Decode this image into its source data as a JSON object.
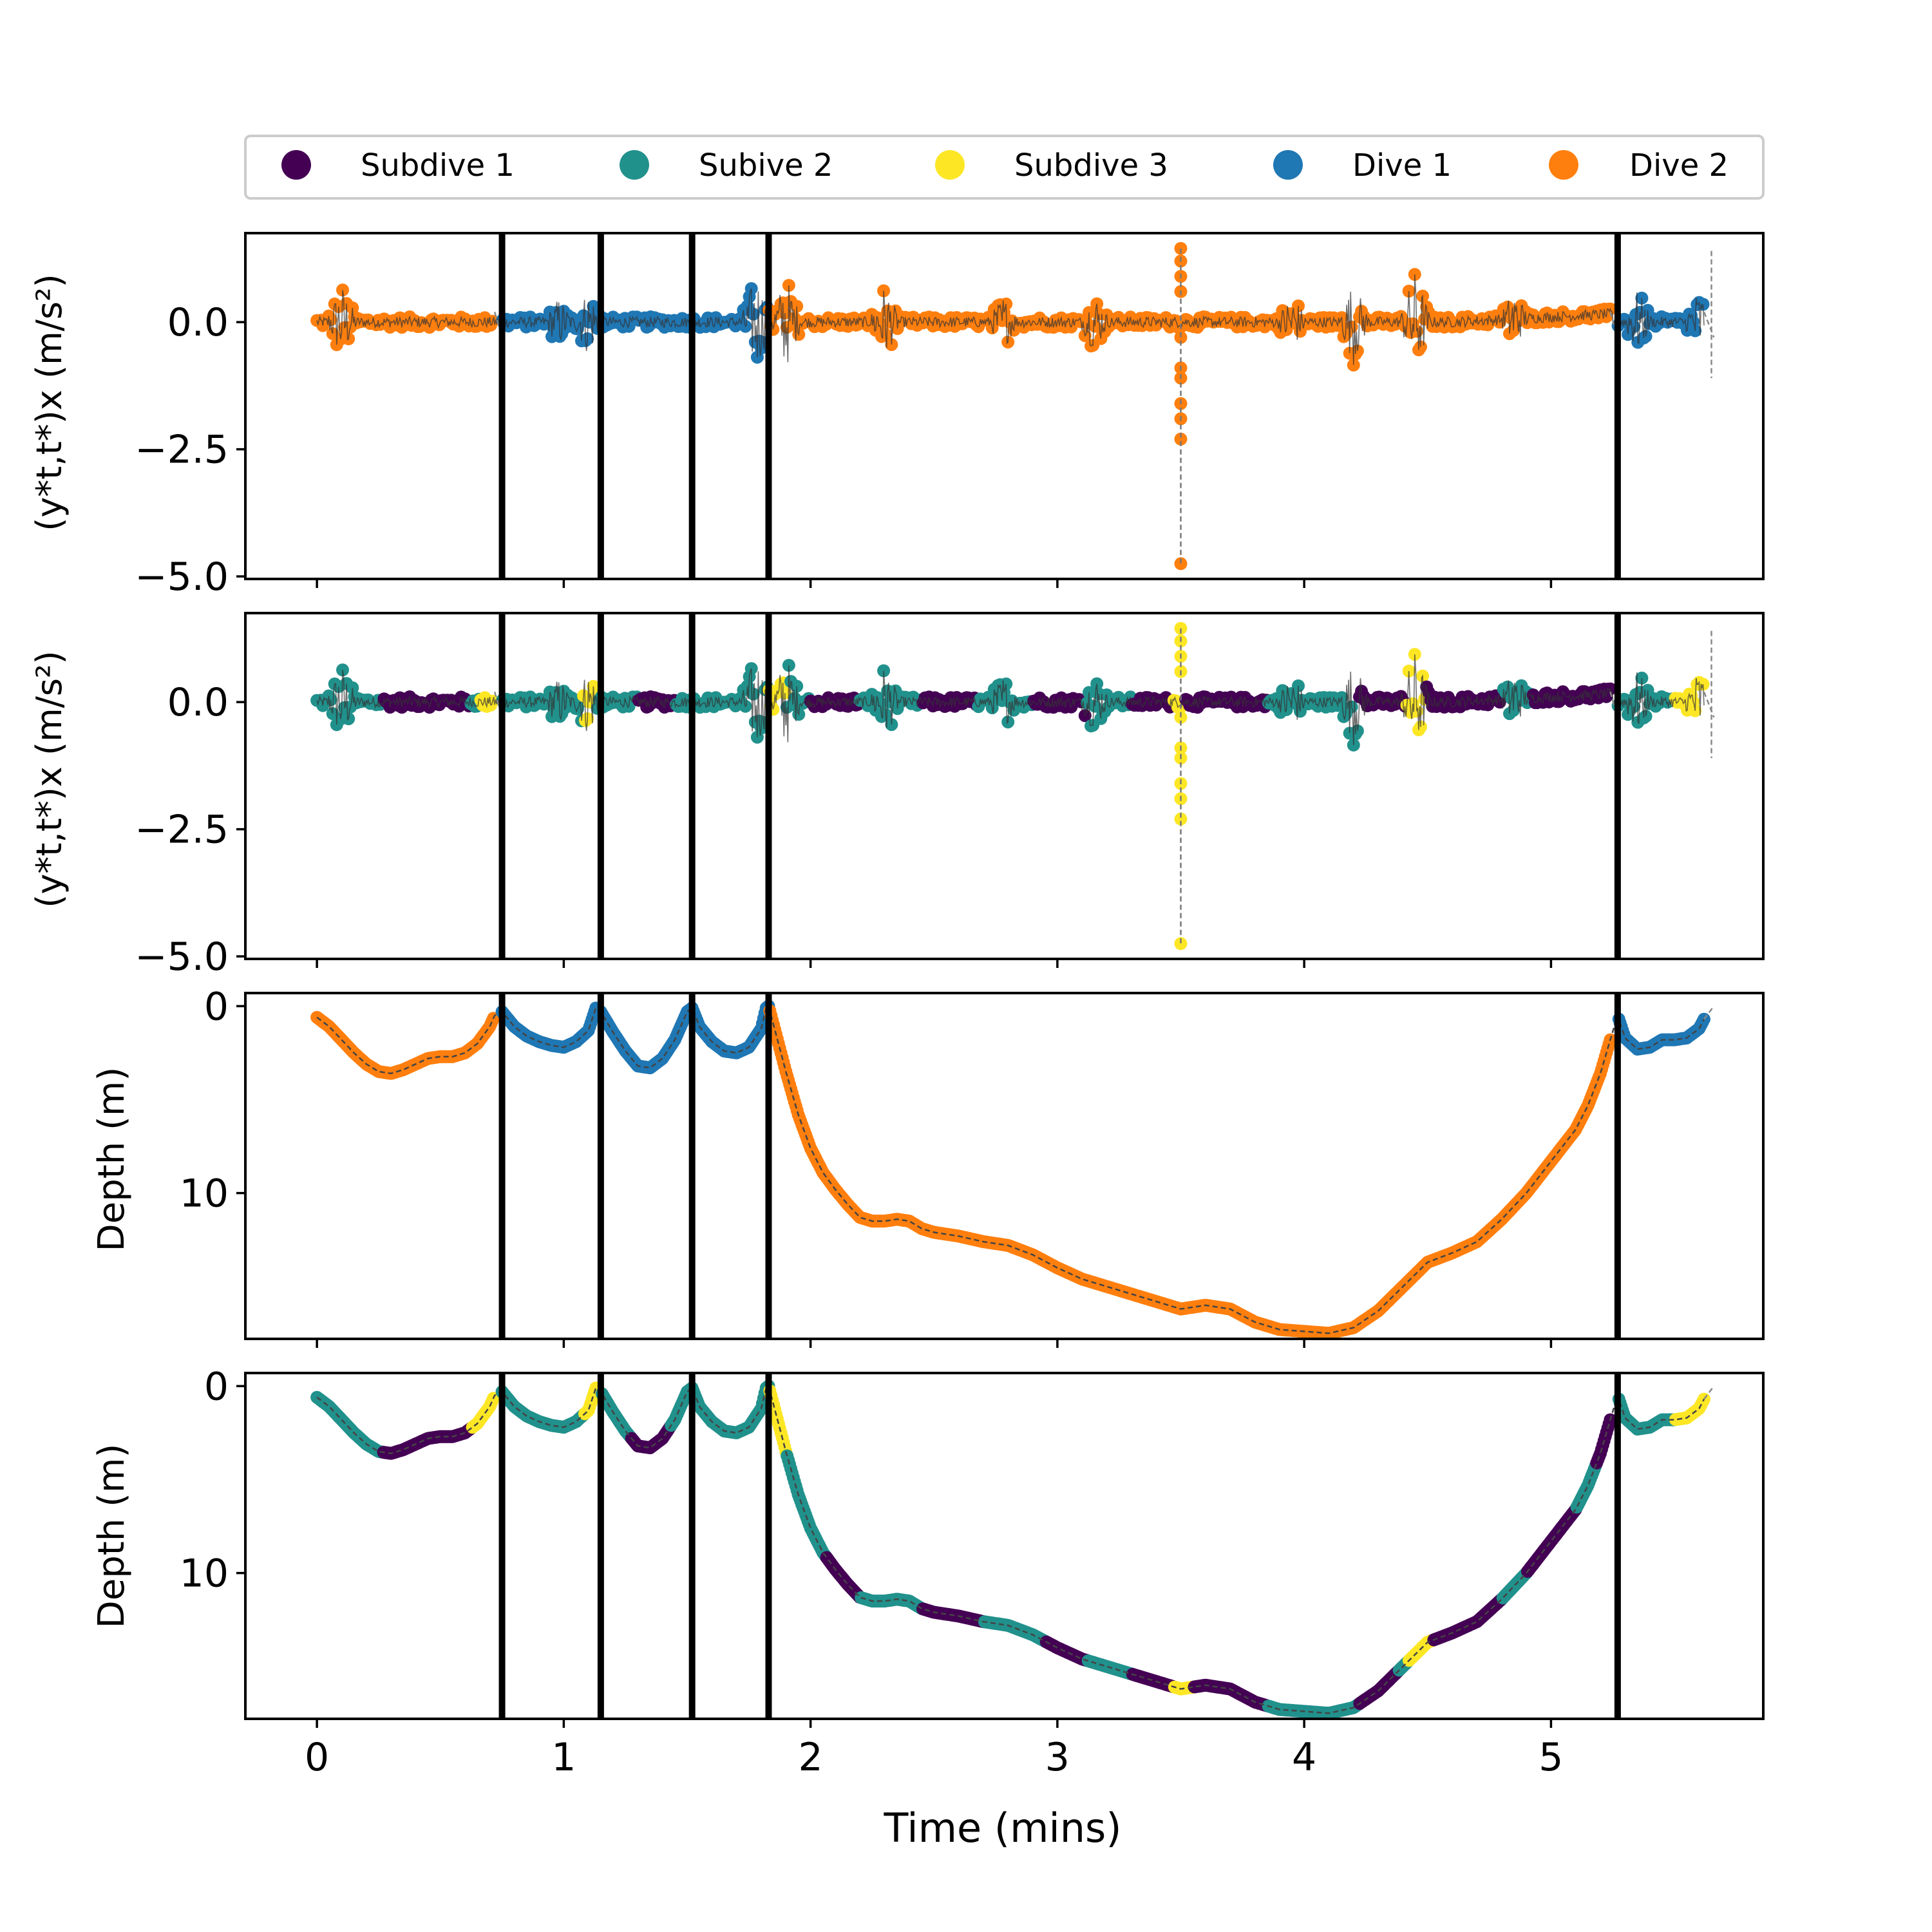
{
  "chart_data": {
    "type": "line",
    "x_domain": [
      -0.29,
      5.86
    ],
    "xlabel": "Time (mins)",
    "x_ticks": [
      "0",
      "1",
      "2",
      "3",
      "4",
      "5"
    ],
    "segment_boundaries_mins": [
      0.75,
      1.15,
      1.52,
      1.83,
      5.27
    ],
    "legend": {
      "placement": "top-center",
      "entries": [
        {
          "label": "Subdive 1",
          "color": "#440154"
        },
        {
          "label": "Subive 2",
          "color": "#21918c"
        },
        {
          "label": "Subdive 3",
          "color": "#fde725"
        },
        {
          "label": "Dive 1",
          "color": "#1f77b4"
        },
        {
          "label": "Dive 2",
          "color": "#ff7f0e"
        }
      ]
    },
    "panels": [
      {
        "id": "accel-dive",
        "kind": "accel",
        "ylim": [
          -5.05,
          1.75
        ],
        "ylabel": "(y*t,t*)x (m/s²)",
        "y_ticks": [
          "0.0",
          "−2.5",
          "−5.0"
        ],
        "color_by": "dive"
      },
      {
        "id": "accel-subdive",
        "kind": "accel",
        "ylim": [
          -5.05,
          1.75
        ],
        "ylabel": "(y*t,t*)x (m/s²)",
        "y_ticks": [
          "0.0",
          "−2.5",
          "−5.0"
        ],
        "color_by": "subdive"
      },
      {
        "id": "depth-dive",
        "kind": "depth",
        "ylim": [
          17.8,
          -0.7
        ],
        "ylabel": "Depth (m)",
        "y_ticks": [
          "0",
          "10"
        ],
        "color_by": "dive"
      },
      {
        "id": "depth-subdive",
        "kind": "depth",
        "ylim": [
          17.8,
          -0.7
        ],
        "ylabel": "Depth (m)",
        "y_ticks": [
          "0",
          "10"
        ],
        "color_by": "subdive"
      }
    ],
    "dive_segments": [
      {
        "t0": 0.0,
        "t1": 0.72,
        "dive": "Dive 2"
      },
      {
        "t0": 0.75,
        "t1": 1.83,
        "dive": "Dive 1"
      },
      {
        "t0": 1.83,
        "t1": 5.24,
        "dive": "Dive 2"
      },
      {
        "t0": 5.27,
        "t1": 5.62,
        "dive": "Dive 1"
      }
    ],
    "accel_subdive_segments": [
      {
        "t0": 0.0,
        "t1": 0.27,
        "state": "Subive 2"
      },
      {
        "t0": 0.27,
        "t1": 0.62,
        "state": "Subdive 1"
      },
      {
        "t0": 0.62,
        "t1": 0.66,
        "state": "Subive 2"
      },
      {
        "t0": 0.66,
        "t1": 0.72,
        "state": "Subdive 3"
      },
      {
        "t0": 0.75,
        "t1": 1.08,
        "state": "Subive 2"
      },
      {
        "t0": 1.08,
        "t1": 1.13,
        "state": "Subdive 3"
      },
      {
        "t0": 1.13,
        "t1": 1.3,
        "state": "Subive 2"
      },
      {
        "t0": 1.3,
        "t1": 1.45,
        "state": "Subdive 1"
      },
      {
        "t0": 1.45,
        "t1": 1.83,
        "state": "Subive 2"
      },
      {
        "t0": 1.83,
        "t1": 1.9,
        "state": "Subdive 3"
      },
      {
        "t0": 1.9,
        "t1": 2.0,
        "state": "Subive 2"
      },
      {
        "t0": 2.0,
        "t1": 2.2,
        "state": "Subdive 1"
      },
      {
        "t0": 2.2,
        "t1": 2.45,
        "state": "Subive 2"
      },
      {
        "t0": 2.45,
        "t1": 2.68,
        "state": "Subdive 1"
      },
      {
        "t0": 2.68,
        "t1": 2.9,
        "state": "Subive 2"
      },
      {
        "t0": 2.9,
        "t1": 3.12,
        "state": "Subdive 1"
      },
      {
        "t0": 3.12,
        "t1": 3.3,
        "state": "Subive 2"
      },
      {
        "t0": 3.3,
        "t1": 3.47,
        "state": "Subdive 1"
      },
      {
        "t0": 3.47,
        "t1": 3.52,
        "state": "Subdive 3"
      },
      {
        "t0": 3.52,
        "t1": 3.85,
        "state": "Subdive 1"
      },
      {
        "t0": 3.85,
        "t1": 4.22,
        "state": "Subive 2"
      },
      {
        "t0": 4.22,
        "t1": 4.41,
        "state": "Subdive 1"
      },
      {
        "t0": 4.41,
        "t1": 4.49,
        "state": "Subdive 3"
      },
      {
        "t0": 4.49,
        "t1": 4.8,
        "state": "Subdive 1"
      },
      {
        "t0": 4.8,
        "t1": 4.92,
        "state": "Subive 2"
      },
      {
        "t0": 4.92,
        "t1": 5.24,
        "state": "Subdive 1"
      },
      {
        "t0": 5.27,
        "t1": 5.5,
        "state": "Subive 2"
      },
      {
        "t0": 5.5,
        "t1": 5.62,
        "state": "Subdive 3"
      }
    ],
    "depth_subdive_segments": [
      {
        "t0": 0.0,
        "t1": 0.27,
        "state": "Subive 2"
      },
      {
        "t0": 0.27,
        "t1": 0.63,
        "state": "Subdive 1"
      },
      {
        "t0": 0.63,
        "t1": 0.72,
        "state": "Subdive 3"
      },
      {
        "t0": 0.75,
        "t1": 1.08,
        "state": "Subive 2"
      },
      {
        "t0": 1.08,
        "t1": 1.14,
        "state": "Subdive 3"
      },
      {
        "t0": 1.15,
        "t1": 1.27,
        "state": "Subive 2"
      },
      {
        "t0": 1.27,
        "t1": 1.43,
        "state": "Subdive 1"
      },
      {
        "t0": 1.43,
        "t1": 1.83,
        "state": "Subive 2"
      },
      {
        "t0": 1.83,
        "t1": 1.9,
        "state": "Subdive 3"
      },
      {
        "t0": 1.9,
        "t1": 2.06,
        "state": "Subive 2"
      },
      {
        "t0": 2.06,
        "t1": 2.2,
        "state": "Subdive 1"
      },
      {
        "t0": 2.2,
        "t1": 2.45,
        "state": "Subive 2"
      },
      {
        "t0": 2.45,
        "t1": 2.7,
        "state": "Subdive 1"
      },
      {
        "t0": 2.7,
        "t1": 2.95,
        "state": "Subive 2"
      },
      {
        "t0": 2.95,
        "t1": 3.12,
        "state": "Subdive 1"
      },
      {
        "t0": 3.12,
        "t1": 3.3,
        "state": "Subive 2"
      },
      {
        "t0": 3.3,
        "t1": 3.47,
        "state": "Subdive 1"
      },
      {
        "t0": 3.47,
        "t1": 3.55,
        "state": "Subdive 3"
      },
      {
        "t0": 3.55,
        "t1": 3.85,
        "state": "Subdive 1"
      },
      {
        "t0": 3.85,
        "t1": 4.22,
        "state": "Subive 2"
      },
      {
        "t0": 4.22,
        "t1": 4.38,
        "state": "Subdive 1"
      },
      {
        "t0": 4.38,
        "t1": 4.42,
        "state": "Subive 2"
      },
      {
        "t0": 4.42,
        "t1": 4.52,
        "state": "Subdive 3"
      },
      {
        "t0": 4.52,
        "t1": 4.8,
        "state": "Subdive 1"
      },
      {
        "t0": 4.8,
        "t1": 4.9,
        "state": "Subive 2"
      },
      {
        "t0": 4.9,
        "t1": 5.1,
        "state": "Subdive 1"
      },
      {
        "t0": 5.1,
        "t1": 5.18,
        "state": "Subive 2"
      },
      {
        "t0": 5.18,
        "t1": 5.24,
        "state": "Subdive 1"
      },
      {
        "t0": 5.27,
        "t1": 5.5,
        "state": "Subive 2"
      },
      {
        "t0": 5.5,
        "t1": 5.62,
        "state": "Subdive 3"
      }
    ],
    "depth_profile": [
      [
        0.0,
        0.6
      ],
      [
        0.05,
        1.1
      ],
      [
        0.1,
        1.8
      ],
      [
        0.15,
        2.5
      ],
      [
        0.2,
        3.1
      ],
      [
        0.25,
        3.5
      ],
      [
        0.3,
        3.6
      ],
      [
        0.35,
        3.4
      ],
      [
        0.4,
        3.1
      ],
      [
        0.45,
        2.8
      ],
      [
        0.5,
        2.7
      ],
      [
        0.55,
        2.7
      ],
      [
        0.6,
        2.5
      ],
      [
        0.65,
        2.0
      ],
      [
        0.7,
        1.1
      ],
      [
        0.72,
        0.5
      ],
      [
        0.75,
        0.3
      ],
      [
        0.8,
        1.1
      ],
      [
        0.85,
        1.6
      ],
      [
        0.9,
        1.9
      ],
      [
        0.95,
        2.1
      ],
      [
        1.0,
        2.2
      ],
      [
        1.05,
        1.9
      ],
      [
        1.1,
        1.3
      ],
      [
        1.13,
        0.1
      ],
      [
        1.15,
        0.3
      ],
      [
        1.2,
        1.4
      ],
      [
        1.25,
        2.4
      ],
      [
        1.3,
        3.2
      ],
      [
        1.35,
        3.3
      ],
      [
        1.4,
        2.8
      ],
      [
        1.45,
        1.8
      ],
      [
        1.5,
        0.3
      ],
      [
        1.52,
        0.1
      ],
      [
        1.55,
        1.1
      ],
      [
        1.6,
        1.9
      ],
      [
        1.65,
        2.4
      ],
      [
        1.7,
        2.5
      ],
      [
        1.75,
        2.2
      ],
      [
        1.8,
        1.2
      ],
      [
        1.82,
        0.1
      ],
      [
        1.83,
        0.0
      ],
      [
        1.9,
        3.5
      ],
      [
        1.95,
        5.8
      ],
      [
        2.0,
        7.6
      ],
      [
        2.05,
        8.9
      ],
      [
        2.1,
        9.8
      ],
      [
        2.15,
        10.6
      ],
      [
        2.2,
        11.3
      ],
      [
        2.25,
        11.5
      ],
      [
        2.3,
        11.5
      ],
      [
        2.35,
        11.4
      ],
      [
        2.4,
        11.5
      ],
      [
        2.45,
        11.9
      ],
      [
        2.5,
        12.1
      ],
      [
        2.6,
        12.3
      ],
      [
        2.7,
        12.6
      ],
      [
        2.8,
        12.8
      ],
      [
        2.9,
        13.3
      ],
      [
        3.0,
        14.0
      ],
      [
        3.1,
        14.6
      ],
      [
        3.2,
        15.0
      ],
      [
        3.3,
        15.4
      ],
      [
        3.4,
        15.8
      ],
      [
        3.5,
        16.2
      ],
      [
        3.6,
        16.0
      ],
      [
        3.7,
        16.2
      ],
      [
        3.8,
        16.9
      ],
      [
        3.9,
        17.3
      ],
      [
        4.0,
        17.4
      ],
      [
        4.1,
        17.5
      ],
      [
        4.2,
        17.2
      ],
      [
        4.3,
        16.3
      ],
      [
        4.4,
        15.0
      ],
      [
        4.5,
        13.7
      ],
      [
        4.6,
        13.2
      ],
      [
        4.7,
        12.6
      ],
      [
        4.8,
        11.4
      ],
      [
        4.9,
        10.0
      ],
      [
        5.0,
        8.3
      ],
      [
        5.1,
        6.6
      ],
      [
        5.15,
        5.3
      ],
      [
        5.2,
        3.6
      ],
      [
        5.24,
        1.8
      ],
      [
        5.27,
        0.5
      ],
      [
        5.3,
        1.7
      ],
      [
        5.35,
        2.3
      ],
      [
        5.4,
        2.2
      ],
      [
        5.45,
        1.8
      ],
      [
        5.5,
        1.8
      ],
      [
        5.55,
        1.7
      ],
      [
        5.6,
        1.2
      ],
      [
        5.62,
        0.7
      ]
    ],
    "accel_profile": {
      "baseline": 0.0,
      "typical_noise_amplitude": 0.3,
      "bursts": [
        {
          "t": 0.1,
          "amp": 0.8
        },
        {
          "t": 0.98,
          "amp": 0.5
        },
        {
          "t": 1.1,
          "amp": 0.7
        },
        {
          "t": 1.78,
          "amp": 1.0
        },
        {
          "t": 1.9,
          "amp": 0.95
        },
        {
          "t": 2.3,
          "amp": 0.75
        },
        {
          "t": 2.78,
          "amp": 0.55
        },
        {
          "t": 3.15,
          "amp": 0.6
        },
        {
          "t": 3.95,
          "amp": 0.6
        },
        {
          "t": 4.2,
          "amp": 0.85
        },
        {
          "t": 4.45,
          "amp": 1.05
        },
        {
          "t": 4.85,
          "amp": 0.6
        },
        {
          "t": 5.35,
          "amp": 0.65
        },
        {
          "t": 5.6,
          "amp": 0.7
        }
      ],
      "spike": {
        "t": 3.5,
        "min": -4.75,
        "max": 1.45
      }
    }
  }
}
